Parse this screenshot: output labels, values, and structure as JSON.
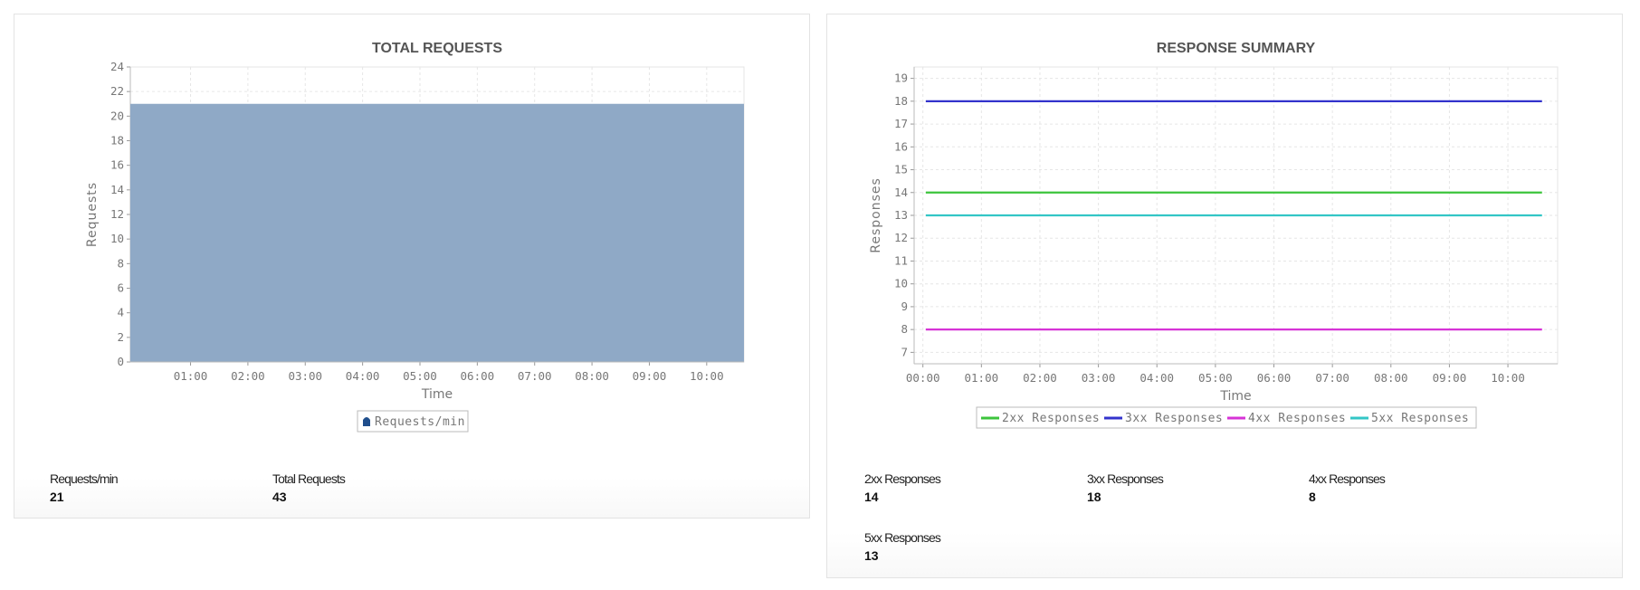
{
  "chart_data": [
    {
      "type": "area",
      "title": "TOTAL REQUESTS",
      "xlabel": "Time",
      "ylabel": "Requests",
      "ylim": [
        0,
        24
      ],
      "yticks": [
        "0",
        "2",
        "4",
        "6",
        "8",
        "10",
        "12",
        "14",
        "16",
        "18",
        "20",
        "22",
        "24"
      ],
      "xticks": [
        "01:00",
        "02:00",
        "03:00",
        "04:00",
        "05:00",
        "06:00",
        "07:00",
        "08:00",
        "09:00",
        "10:00"
      ],
      "x": [
        "00:00",
        "10:35"
      ],
      "grid": true,
      "legend_placement": "bottom",
      "series": [
        {
          "name": "Requests/min",
          "values": [
            21,
            21
          ],
          "color": "#8da7c5",
          "legend_color": "#1f4e8c"
        }
      ]
    },
    {
      "type": "line",
      "title": "RESPONSE SUMMARY",
      "xlabel": "Time",
      "ylabel": "Responses",
      "ylim": [
        6.5,
        19.5
      ],
      "yticks": [
        "7",
        "8",
        "9",
        "10",
        "11",
        "12",
        "13",
        "14",
        "15",
        "16",
        "17",
        "18",
        "19"
      ],
      "xticks": [
        "00:00",
        "01:00",
        "02:00",
        "03:00",
        "04:00",
        "05:00",
        "06:00",
        "07:00",
        "08:00",
        "09:00",
        "10:00"
      ],
      "x": [
        "00:03",
        "10:35"
      ],
      "grid": true,
      "legend_placement": "bottom",
      "series": [
        {
          "name": "2xx Responses",
          "values": [
            14,
            14
          ],
          "color": "#3cc43c"
        },
        {
          "name": "3xx Responses",
          "values": [
            18,
            18
          ],
          "color": "#3333cc"
        },
        {
          "name": "4xx Responses",
          "values": [
            8,
            8
          ],
          "color": "#d633d6"
        },
        {
          "name": "5xx Responses",
          "values": [
            13,
            13
          ],
          "color": "#33c6c6"
        }
      ]
    }
  ],
  "stats_left": [
    {
      "label": "Requests/min",
      "value": "21"
    },
    {
      "label": "Total Requests",
      "value": "43"
    }
  ],
  "stats_right": [
    {
      "label": "2xx Responses",
      "value": "14"
    },
    {
      "label": "3xx Responses",
      "value": "18"
    },
    {
      "label": "4xx Responses",
      "value": "8"
    },
    {
      "label": "5xx Responses",
      "value": "13"
    }
  ]
}
